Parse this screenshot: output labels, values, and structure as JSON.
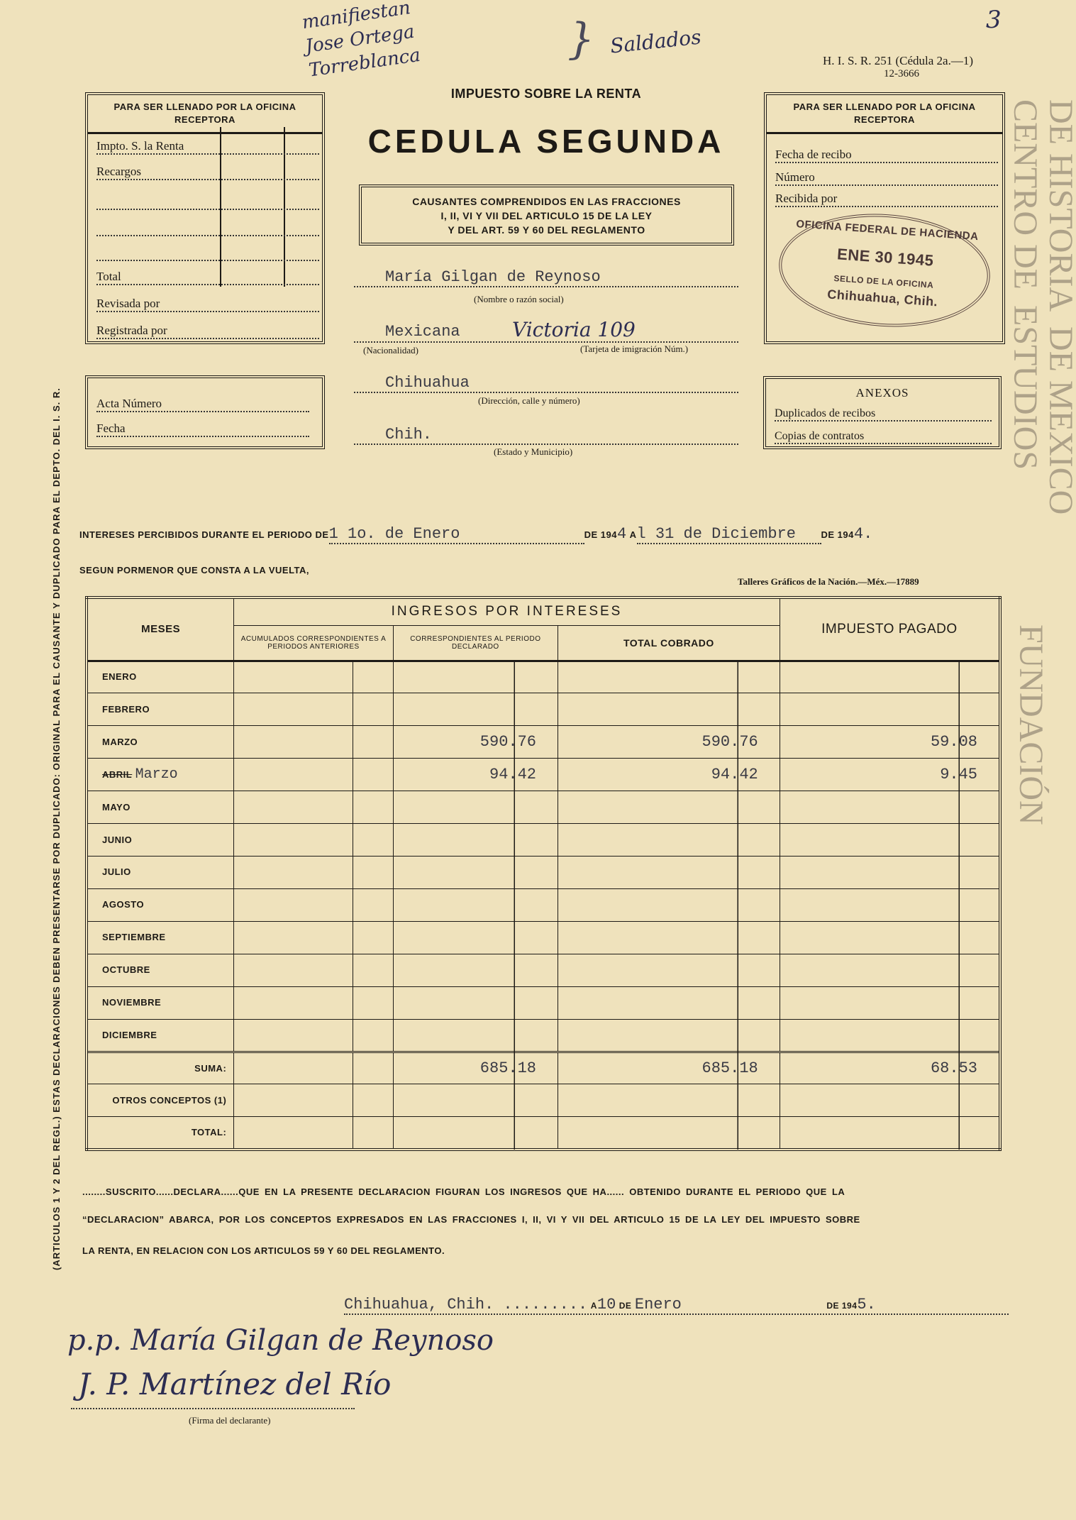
{
  "page_number": "3",
  "handwritten_note": {
    "lines": [
      "manifiestan",
      "Jose Ortega",
      "Torreblanca"
    ],
    "bracket_note": "Saldados"
  },
  "watermark": [
    "CENTRO DE",
    "ESTUDIOS",
    "DE HISTORIA",
    "DE MEXICO",
    "FUNDACIÓN"
  ],
  "form_code": "H. I. S. R. 251 (Cédula 2a.—1)",
  "form_number": "12-3666",
  "header": {
    "subtitle": "IMPUESTO SOBRE LA RENTA",
    "title": "CEDULA SEGUNDA",
    "scope": [
      "CAUSANTES COMPRENDIDOS EN LAS FRACCIONES",
      "I, II, VI Y VII DEL ARTICULO 15 DE LA LEY",
      "Y DEL ART. 59 Y 60 DEL REGLAMENTO"
    ]
  },
  "left_box": {
    "title": "PARA SER LLENADO POR LA OFICINA RECEPTORA",
    "items": [
      "Impto. S. la Renta",
      "Recargos",
      "Total",
      "Revisada por",
      "Registrada por"
    ]
  },
  "right_box": {
    "title": "PARA SER LLENADO POR LA OFICINA RECEPTORA",
    "items": [
      "Fecha de recibo",
      "Número",
      "Recibida por"
    ]
  },
  "stamp": {
    "office": "OFICINA FEDERAL DE HACIENDA",
    "date": "ENE 30 1945",
    "city": "Chihuahua, Chih.",
    "caption": "SELLO DE LA OFICINA"
  },
  "taxpayer": {
    "name": "María Gilgan de Reynoso",
    "name_label": "(Nombre o razón social)",
    "nationality": "Mexicana",
    "nationality_label": "(Nacionalidad)",
    "card": "Victoria 109",
    "card_label": "(Tarjeta de imigración Núm.)",
    "address": "Chihuahua",
    "address_label": "(Dirección, calle y número)",
    "state": "Chih.",
    "state_label": "(Estado y Municipio)"
  },
  "acta_box": {
    "items": [
      "Acta Número",
      "Fecha"
    ]
  },
  "anexos": {
    "title": "ANEXOS",
    "items": [
      "Duplicados de recibos",
      "Copias de contratos"
    ]
  },
  "period": {
    "prefix": "INTERESES PERCIBIDOS DURANTE EL PERIODO DE",
    "from": "1 1o. de Enero",
    "de1": "DE 194",
    "year1": "4",
    "a": "A",
    "to": "l 31 de Diciembre",
    "de2": "DE 194",
    "year2": "4."
  },
  "segun": "SEGUN PORMENOR QUE CONSTA A LA VUELTA,",
  "printer": "Talleres Gráficos de la Nación.—Méx.—17889",
  "table": {
    "headers": {
      "meses": "MESES",
      "ingresos": "INGRESOS POR INTERESES",
      "acumulados": "ACUMULADOS CORRESPONDIENTES A PERIODOS ANTERIORES",
      "correspondientes": "CORRESPONDIENTES AL PERIODO DECLARADO",
      "total": "TOTAL COBRADO",
      "impuesto": "IMPUESTO PAGADO"
    },
    "rows": [
      {
        "mes": "ENERO",
        "typed": "",
        "corr": "",
        "total": "",
        "imp": ""
      },
      {
        "mes": "FEBRERO",
        "typed": "",
        "corr": "",
        "total": "",
        "imp": ""
      },
      {
        "mes": "MARZO",
        "typed": "",
        "corr": "590.76",
        "total": "590.76",
        "imp": "59.08"
      },
      {
        "mes": "ABRIL",
        "typed": "Marzo",
        "corr": "94.42",
        "total": "94.42",
        "imp": "9.45"
      },
      {
        "mes": "MAYO",
        "typed": "",
        "corr": "",
        "total": "",
        "imp": ""
      },
      {
        "mes": "JUNIO",
        "typed": "",
        "corr": "",
        "total": "",
        "imp": ""
      },
      {
        "mes": "JULIO",
        "typed": "",
        "corr": "",
        "total": "",
        "imp": ""
      },
      {
        "mes": "AGOSTO",
        "typed": "",
        "corr": "",
        "total": "",
        "imp": ""
      },
      {
        "mes": "SEPTIEMBRE",
        "typed": "",
        "corr": "",
        "total": "",
        "imp": ""
      },
      {
        "mes": "OCTUBRE",
        "typed": "",
        "corr": "",
        "total": "",
        "imp": ""
      },
      {
        "mes": "NOVIEMBRE",
        "typed": "",
        "corr": "",
        "total": "",
        "imp": ""
      },
      {
        "mes": "DICIEMBRE",
        "typed": "",
        "corr": "",
        "total": "",
        "imp": ""
      }
    ],
    "totals": [
      {
        "mes": "SUMA:",
        "corr": "685.18",
        "total": "685.18",
        "imp": "68.53"
      },
      {
        "mes": "OTROS CONCEPTOS (1)",
        "corr": "",
        "total": "",
        "imp": ""
      },
      {
        "mes": "TOTAL:",
        "corr": "",
        "total": "",
        "imp": ""
      }
    ]
  },
  "declaration": [
    "........SUSCRITO......DECLARA......QUE EN LA PRESENTE DECLARACION FIGURAN LOS INGRESOS QUE HA...... OBTENIDO DURANTE EL PERIODO QUE LA",
    "“DECLARACION” ABARCA, POR LOS CONCEPTOS EXPRESADOS EN LAS FRACCIONES I, II, VI Y VII DEL ARTICULO 15 DE LA LEY DEL IMPUESTO SOBRE",
    "LA RENTA, EN RELACION CON LOS ARTICULOS 59 Y 60 DEL REGLAMENTO."
  ],
  "place_date": {
    "place": "Chihuahua, Chih. .........",
    "a": "A",
    "day": "10",
    "de": "DE",
    "month": "Enero",
    "de_year": "DE 194",
    "year": "5."
  },
  "signatures": [
    "p.p. María Gilgan de Reynoso",
    "J. P. Martínez del Río"
  ],
  "signature_label": "(Firma del declarante)",
  "side_note": "(ARTICULOS 1 Y 2 DEL REGL.)  ESTAS DECLARACIONES DEBEN PRESENTARSE POR DUPLICADO: ORIGINAL PARA EL CAUSANTE Y DUPLICADO PARA EL DEPTO. DEL I. S. R."
}
